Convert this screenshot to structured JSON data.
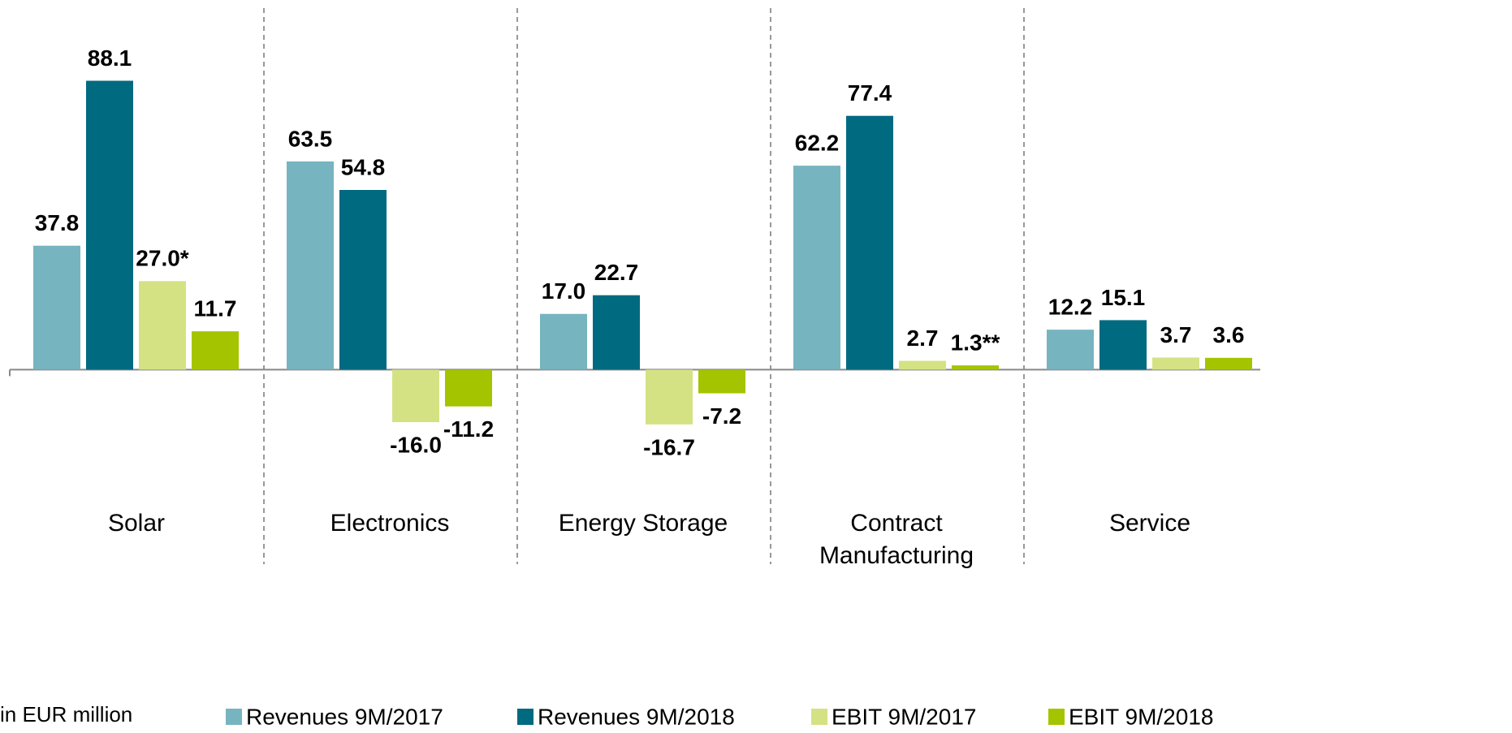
{
  "chart_data": {
    "type": "bar",
    "annotation": "in EUR million",
    "categories": [
      "Solar",
      "Electronics",
      "Energy Storage",
      "Contract Manufacturing",
      "Service"
    ],
    "series": [
      {
        "name": "Revenues 9M/2017",
        "color": "#76b4c0",
        "values": [
          37.8,
          63.5,
          17.0,
          62.2,
          12.2
        ],
        "value_labels": [
          "37.8",
          "63.5",
          "17.0",
          "62.2",
          "12.2"
        ]
      },
      {
        "name": "Revenues 9M/2018",
        "color": "#006a80",
        "values": [
          88.1,
          54.8,
          22.7,
          77.4,
          15.1
        ],
        "value_labels": [
          "88.1",
          "54.8",
          "22.7",
          "77.4",
          "15.1"
        ]
      },
      {
        "name": "EBIT 9M/2017",
        "color": "#d4e283",
        "values": [
          27.0,
          -16.0,
          -16.7,
          2.7,
          3.7
        ],
        "value_labels": [
          "27.0*",
          "-16.0",
          "-16.7",
          "2.7",
          "3.7"
        ]
      },
      {
        "name": "EBIT 9M/2018",
        "color": "#a4c400",
        "values": [
          11.7,
          -11.2,
          -7.2,
          1.3,
          3.6
        ],
        "value_labels": [
          "11.7",
          "-11.2",
          "-7.2",
          "1.3**",
          "3.6"
        ]
      }
    ],
    "ylim": [
      -40,
      110
    ]
  }
}
